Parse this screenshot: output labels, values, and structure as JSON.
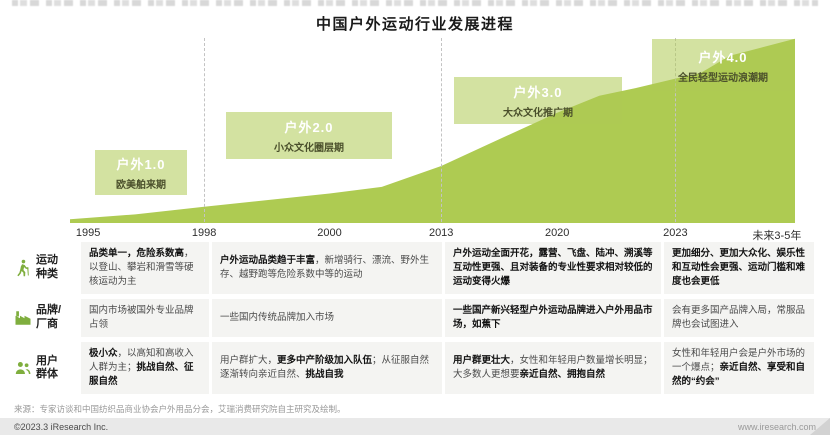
{
  "header": {
    "title": "中国户外运动行业发展进程"
  },
  "chart_data": {
    "type": "area",
    "title": "中国户外运动行业发展进程",
    "x_ticks": [
      "1995",
      "1998",
      "2000",
      "2013",
      "2020",
      "2023",
      "未来3-5年"
    ],
    "x_tick_pos": [
      0.025,
      0.185,
      0.358,
      0.512,
      0.672,
      0.835,
      0.975
    ],
    "boundary_pos": [
      0.185,
      0.512,
      0.835
    ],
    "area_color": "#aecb52",
    "grid": "dashed stage boundaries only",
    "curve": [
      [
        0,
        0.02
      ],
      [
        0.09,
        0.045
      ],
      [
        0.185,
        0.085
      ],
      [
        0.27,
        0.12
      ],
      [
        0.358,
        0.155
      ],
      [
        0.43,
        0.19
      ],
      [
        0.512,
        0.3
      ],
      [
        0.58,
        0.42
      ],
      [
        0.672,
        0.58
      ],
      [
        0.73,
        0.67
      ],
      [
        0.78,
        0.71
      ],
      [
        0.835,
        0.76
      ],
      [
        0.87,
        0.79
      ],
      [
        0.91,
        0.88
      ],
      [
        0.95,
        0.92
      ],
      [
        1,
        0.97
      ]
    ],
    "stages": [
      {
        "label": "户外1.0",
        "sublabel": "欧美舶来期"
      },
      {
        "label": "户外2.0",
        "sublabel": "小众文化圈层期"
      },
      {
        "label": "户外3.0",
        "sublabel": "大众文化推广期"
      },
      {
        "label": "户外4.0",
        "sublabel": "全民轻型运动浪潮期"
      }
    ]
  },
  "table": {
    "rows": [
      {
        "label": "运动\n种类",
        "icon": "hiker-icon",
        "cells": [
          [
            {
              "t": "品类单一，危险系数高",
              "b": true
            },
            {
              "t": "，以登山、攀岩和滑雪等硬核运动为主",
              "b": false
            }
          ],
          [
            {
              "t": "户外运动品类趋于丰富",
              "b": true
            },
            {
              "t": "，新增骑行、漂流、野外生存、越野跑等危险系数中等的运动",
              "b": false
            }
          ],
          [
            {
              "t": "户外运动全面开花，露营、飞盘、陆冲、溯溪等互动性更强、且对装备的专业性要求相对较低的运动变得火爆",
              "b": true
            }
          ],
          [
            {
              "t": "更加细分、更加大众化、娱乐性和互动性会更强、运动门槛和难度也会更低",
              "b": true
            }
          ]
        ]
      },
      {
        "label": "品牌/\n厂商",
        "icon": "factory-icon",
        "cells": [
          [
            {
              "t": "国内市场被国外专业品牌占领",
              "b": false
            }
          ],
          [
            {
              "t": "一些国内传统品牌加入市场",
              "b": false
            }
          ],
          [
            {
              "t": "一些国产新兴轻型户外运动品牌进入户外用品市场，如蕉下",
              "b": true
            }
          ],
          [
            {
              "t": "会有更多国产品牌入局，常服品牌也会试图进入",
              "b": false
            }
          ]
        ]
      },
      {
        "label": "用户\n群体",
        "icon": "users-icon",
        "cells": [
          [
            {
              "t": "极小众",
              "b": true
            },
            {
              "t": "，以高知和高收入人群为主；",
              "b": false
            },
            {
              "t": "挑战自然、征服自然",
              "b": true
            }
          ],
          [
            {
              "t": "用户群扩大，",
              "b": false
            },
            {
              "t": "更多中产阶级加入队伍",
              "b": true
            },
            {
              "t": "；从征服自然逐渐转向亲近自然、",
              "b": false
            },
            {
              "t": "挑战自我",
              "b": true
            }
          ],
          [
            {
              "t": "用户群更壮大",
              "b": true
            },
            {
              "t": "，女性和年轻用户数量增长明显；大多数人更想要",
              "b": false
            },
            {
              "t": "亲近自然、拥抱自然",
              "b": true
            }
          ],
          [
            {
              "t": "女性和年轻用户会是户外市场的一个爆点；",
              "b": false
            },
            {
              "t": "亲近自然、享受和自然的“约会”",
              "b": true
            }
          ]
        ]
      }
    ]
  },
  "footnote": "来源：专家访谈和中国纺织品商业协会户外用品分会，艾瑞消费研究院自主研究及绘制。",
  "footer": {
    "left": "©2023.3 iResearch Inc.",
    "right": "www.iresearch.com"
  }
}
